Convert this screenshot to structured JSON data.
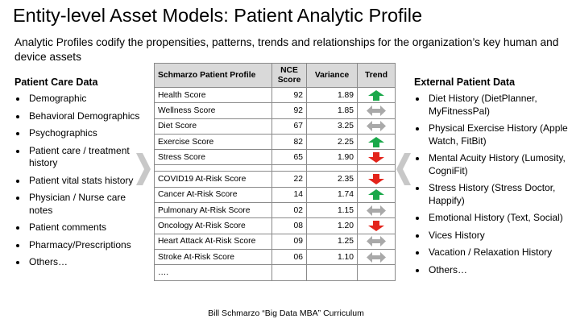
{
  "title": "Entity-level Asset Models:  Patient Analytic Profile",
  "subtitle": "Analytic Profiles codify the propensities, patterns, trends and relationships for the organization’s key human and device assets",
  "left": {
    "heading": "Patient Care Data",
    "items": [
      "Demographic",
      "Behavioral Demographics",
      "Psychographics",
      "Patient care / treatment history",
      "Patient vital stats history",
      "Physician / Nurse care notes",
      "Patient comments",
      "Pharmacy/Prescriptions",
      "Others…"
    ]
  },
  "right": {
    "heading": "External Patient Data",
    "items": [
      "Diet History (DietPlanner, MyFitnessPal)",
      "Physical Exercise History (Apple Watch, FitBit)",
      "Mental Acuity History (Lumosity, CogniFit)",
      "Stress History (Stress Doctor, Happify)",
      "Emotional History (Text, Social)",
      "Vices History",
      "Vacation / Relaxation History",
      "Others…"
    ]
  },
  "table": {
    "headers": [
      "Schmarzo Patient Profile",
      "NCE Score",
      "Variance",
      "Trend"
    ],
    "rows_top": [
      {
        "name": "Health Score",
        "score": "92",
        "variance": "1.89",
        "trend": "up"
      },
      {
        "name": "Wellness Score",
        "score": "92",
        "variance": "1.85",
        "trend": "flat"
      },
      {
        "name": "Diet Score",
        "score": "67",
        "variance": "3.25",
        "trend": "flat"
      },
      {
        "name": "Exercise Score",
        "score": "82",
        "variance": "2.25",
        "trend": "up"
      },
      {
        "name": "Stress Score",
        "score": "65",
        "variance": "1.90",
        "trend": "down"
      }
    ],
    "rows_bottom": [
      {
        "name": "COVID19 At-Risk Score",
        "score": "22",
        "variance": "2.35",
        "trend": "down"
      },
      {
        "name": "Cancer At-Risk Score",
        "score": "14",
        "variance": "1.74",
        "trend": "up"
      },
      {
        "name": "Pulmonary At-Risk Score",
        "score": "02",
        "variance": "1.15",
        "trend": "flat"
      },
      {
        "name": "Oncology At-Risk Score",
        "score": "08",
        "variance": "1.20",
        "trend": "down"
      },
      {
        "name": "Heart Attack At-Risk Score",
        "score": "09",
        "variance": "1.25",
        "trend": "flat"
      },
      {
        "name": "Stroke At-Risk Score",
        "score": "06",
        "variance": "1.10",
        "trend": "flat"
      }
    ],
    "ellipsis": "….",
    "trend_colors": {
      "up": "#1aa84a",
      "down": "#e3241b",
      "flat": "#a9a9a9"
    }
  },
  "footer": "Bill Schmarzo “Big Data MBA” Curriculum"
}
